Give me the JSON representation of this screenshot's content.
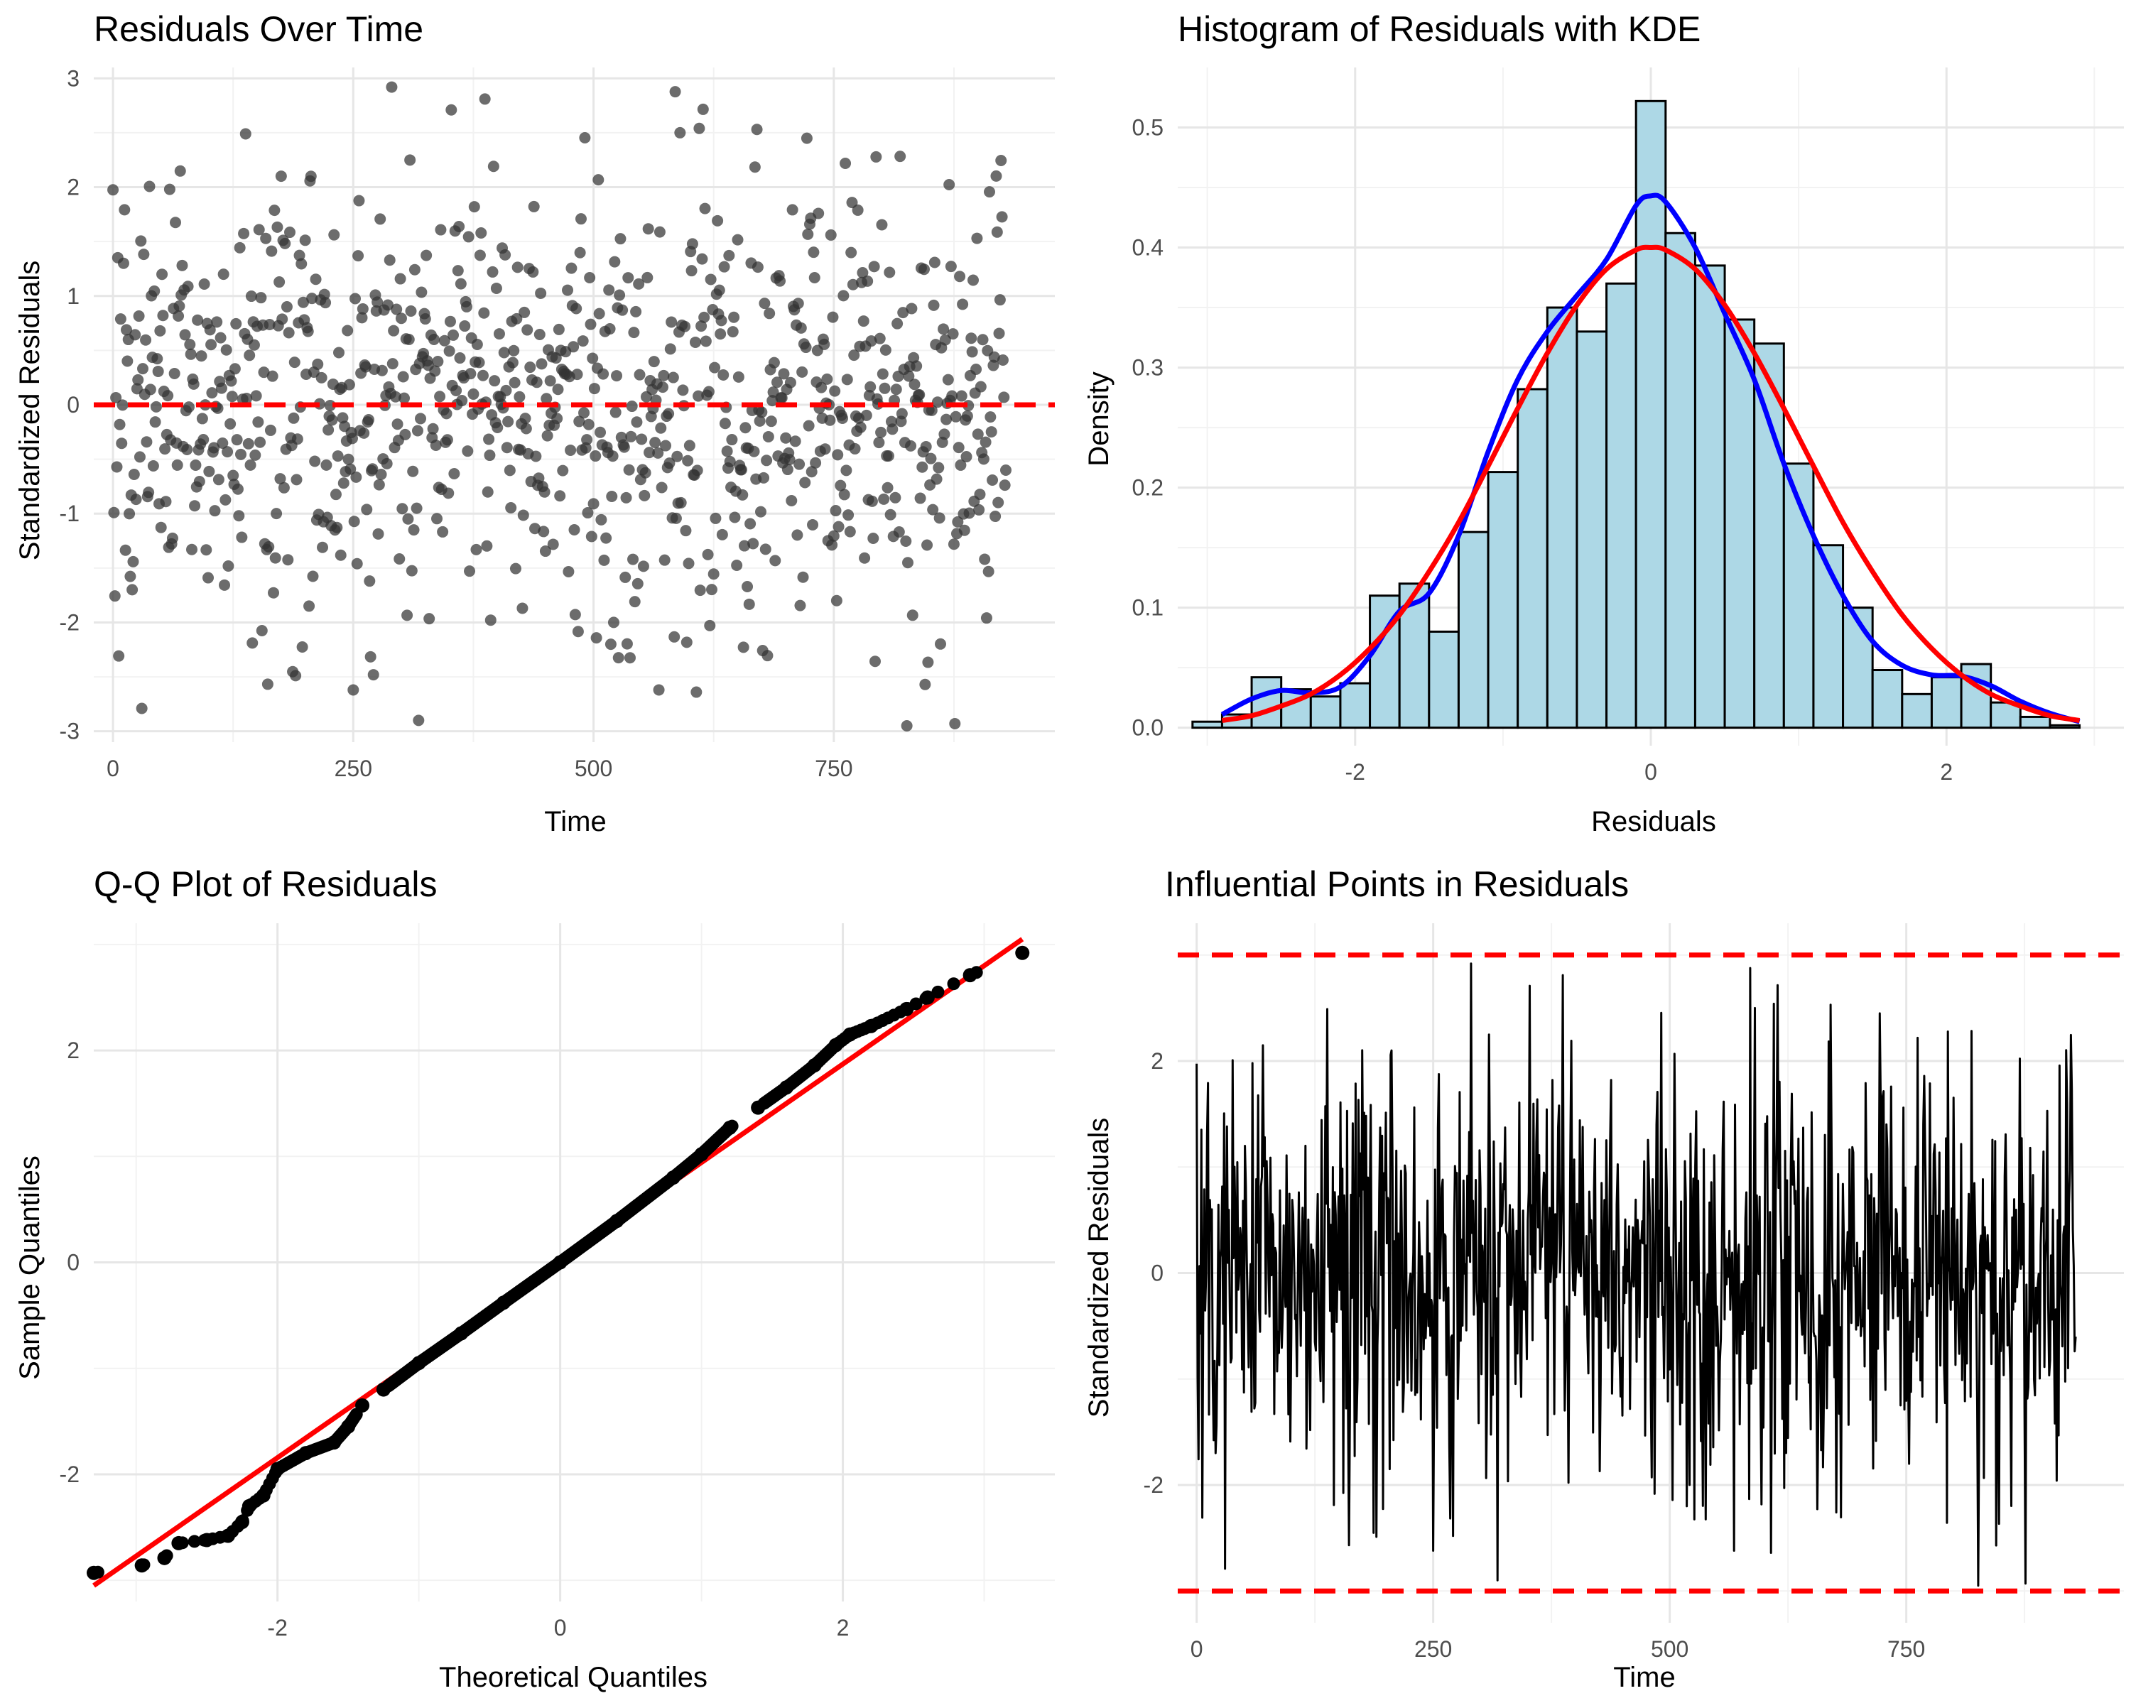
{
  "chart_data": [
    {
      "type": "scatter",
      "title": "Residuals Over Time",
      "xlabel": "Time",
      "ylabel": "Standardized Residuals",
      "xlim": [
        -20,
        980
      ],
      "ylim": [
        -3.1,
        3.1
      ],
      "xticks": [
        0,
        250,
        500,
        750
      ],
      "xtick_labels": [
        "0",
        "250",
        "500",
        "750"
      ],
      "yticks": [
        -3,
        -2,
        -1,
        0,
        1,
        2,
        3
      ],
      "ytick_labels": [
        "-3",
        "-2",
        "-1",
        "0",
        "1",
        "2",
        "3"
      ],
      "grid": true,
      "n_points": 930,
      "distribution": "standard normal, approx. range -2.95 to 2.92",
      "highlighted_points": [
        {
          "x": 290,
          "y": 2.92
        },
        {
          "x": 352,
          "y": 2.71
        },
        {
          "x": 610,
          "y": 2.54
        },
        {
          "x": 590,
          "y": 2.5
        },
        {
          "x": 138,
          "y": 2.49
        },
        {
          "x": 722,
          "y": 2.45
        },
        {
          "x": 876,
          "y": -2.93
        },
        {
          "x": 318,
          "y": -2.9
        },
        {
          "x": 30,
          "y": -2.79
        },
        {
          "x": 250,
          "y": -2.62
        },
        {
          "x": 568,
          "y": -2.62
        },
        {
          "x": 845,
          "y": -2.57
        }
      ],
      "reference_line": {
        "y": 0,
        "color": "#ff0000",
        "style": "dashed"
      },
      "point_color": "#333333"
    },
    {
      "type": "bar",
      "title": "Histogram of Residuals with KDE",
      "xlabel": "Residuals",
      "ylabel": "Density",
      "xlim": [
        -3.2,
        3.2
      ],
      "ylim": [
        -0.015,
        0.55
      ],
      "xticks": [
        -2,
        0,
        2
      ],
      "xtick_labels": [
        "-2",
        "0",
        "2"
      ],
      "yticks": [
        0,
        0.1,
        0.2,
        0.3,
        0.4,
        0.5
      ],
      "ytick_labels": [
        "0.0",
        "0.1",
        "0.2",
        "0.3",
        "0.4",
        "0.5"
      ],
      "grid": true,
      "bin_edges": [
        -3.1,
        -2.9,
        -2.7,
        -2.5,
        -2.3,
        -2.1,
        -1.9,
        -1.7,
        -1.5,
        -1.3,
        -1.1,
        -0.9,
        -0.7,
        -0.5,
        -0.3,
        -0.1,
        0.1,
        0.3,
        0.5,
        0.7,
        0.9,
        1.1,
        1.3,
        1.5,
        1.7,
        1.9,
        2.1,
        2.3,
        2.5,
        2.7,
        2.9
      ],
      "values": [
        0.005,
        0.011,
        0.042,
        0.032,
        0.026,
        0.037,
        0.11,
        0.12,
        0.08,
        0.163,
        0.213,
        0.282,
        0.35,
        0.33,
        0.37,
        0.522,
        0.412,
        0.385,
        0.34,
        0.32,
        0.22,
        0.152,
        0.1,
        0.048,
        0.028,
        0.042,
        0.053,
        0.021,
        0.009,
        0.002
      ],
      "bar_color": "#add8e6",
      "series": [
        {
          "name": "KDE",
          "color": "#0000ff",
          "x": [
            -2.9,
            -2.7,
            -2.5,
            -2.3,
            -2.1,
            -1.9,
            -1.7,
            -1.5,
            -1.3,
            -1.1,
            -0.9,
            -0.7,
            -0.5,
            -0.3,
            -0.1,
            0.0,
            0.1,
            0.3,
            0.5,
            0.7,
            0.9,
            1.1,
            1.3,
            1.5,
            1.7,
            1.9,
            2.1,
            2.3,
            2.5,
            2.7,
            2.9
          ],
          "y": [
            0.011,
            0.024,
            0.031,
            0.029,
            0.034,
            0.06,
            0.097,
            0.112,
            0.16,
            0.23,
            0.29,
            0.33,
            0.36,
            0.39,
            0.435,
            0.443,
            0.438,
            0.4,
            0.345,
            0.29,
            0.22,
            0.16,
            0.11,
            0.072,
            0.052,
            0.044,
            0.043,
            0.035,
            0.022,
            0.012,
            0.005
          ]
        },
        {
          "name": "Normal",
          "color": "#ff0000",
          "x": [
            -2.9,
            -2.7,
            -2.5,
            -2.3,
            -2.1,
            -1.9,
            -1.7,
            -1.5,
            -1.3,
            -1.1,
            -0.9,
            -0.7,
            -0.5,
            -0.3,
            -0.1,
            0.0,
            0.1,
            0.3,
            0.5,
            0.7,
            0.9,
            1.1,
            1.3,
            1.5,
            1.7,
            1.9,
            2.1,
            2.3,
            2.5,
            2.7,
            2.9
          ],
          "y": [
            0.006,
            0.01,
            0.018,
            0.028,
            0.044,
            0.066,
            0.094,
            0.13,
            0.171,
            0.218,
            0.266,
            0.312,
            0.352,
            0.382,
            0.398,
            0.4,
            0.398,
            0.382,
            0.352,
            0.312,
            0.266,
            0.218,
            0.171,
            0.13,
            0.094,
            0.066,
            0.044,
            0.028,
            0.018,
            0.01,
            0.006
          ]
        }
      ]
    },
    {
      "type": "scatter",
      "title": "Q-Q Plot of Residuals",
      "xlabel": "Theoretical Quantiles",
      "ylabel": "Sample Quantiles",
      "xlim": [
        -3.3,
        3.5
      ],
      "ylim": [
        -3.2,
        3.2
      ],
      "xticks": [
        -2,
        0,
        2
      ],
      "xtick_labels": [
        "-2",
        "0",
        "2"
      ],
      "yticks": [
        -2,
        0,
        2
      ],
      "ytick_labels": [
        "-2",
        "0",
        "2"
      ],
      "grid": true,
      "x": [
        -3.3,
        -2.96,
        -2.8,
        -2.7,
        -2.5,
        -2.35,
        -2.25,
        -2.2,
        -2.1,
        -2.0,
        -1.8,
        -1.6,
        -1.5,
        -1.4,
        -1.25,
        -1.0,
        -0.7,
        -0.4,
        0.0,
        0.4,
        0.8,
        1.0,
        1.2,
        1.4,
        1.6,
        1.8,
        1.95,
        2.05,
        2.2,
        2.45,
        2.6,
        2.9,
        3.27
      ],
      "y": [
        -2.93,
        -2.86,
        -2.79,
        -2.65,
        -2.62,
        -2.58,
        -2.45,
        -2.3,
        -2.2,
        -1.95,
        -1.8,
        -1.7,
        -1.55,
        -1.35,
        -1.2,
        -0.95,
        -0.67,
        -0.38,
        0.0,
        0.39,
        0.8,
        1.02,
        1.27,
        1.46,
        1.65,
        1.86,
        2.05,
        2.15,
        2.23,
        2.39,
        2.5,
        2.71,
        2.92
      ],
      "point_color": "#000000",
      "reference_line": {
        "x": [
          -3.3,
          3.27
        ],
        "y": [
          -3.05,
          3.05
        ],
        "color": "#ff0000"
      }
    },
    {
      "type": "line",
      "title": "Influential Points in Residuals",
      "xlabel": "Time",
      "ylabel": "Standardized Residuals",
      "xlim": [
        -20,
        980
      ],
      "ylim": [
        -3.3,
        3.3
      ],
      "xticks": [
        0,
        250,
        500,
        750
      ],
      "xtick_labels": [
        "0",
        "250",
        "500",
        "750"
      ],
      "yticks": [
        -2,
        0,
        2
      ],
      "ytick_labels": [
        "-2",
        "0",
        "2"
      ],
      "grid": true,
      "n_points": 930,
      "distribution": "standard normal, approx. range -2.95 to 2.92",
      "line_color": "#000000",
      "threshold_lines": [
        {
          "y": 3,
          "color": "#ff0000",
          "style": "dashed"
        },
        {
          "y": -3,
          "color": "#ff0000",
          "style": "dashed"
        }
      ]
    }
  ]
}
